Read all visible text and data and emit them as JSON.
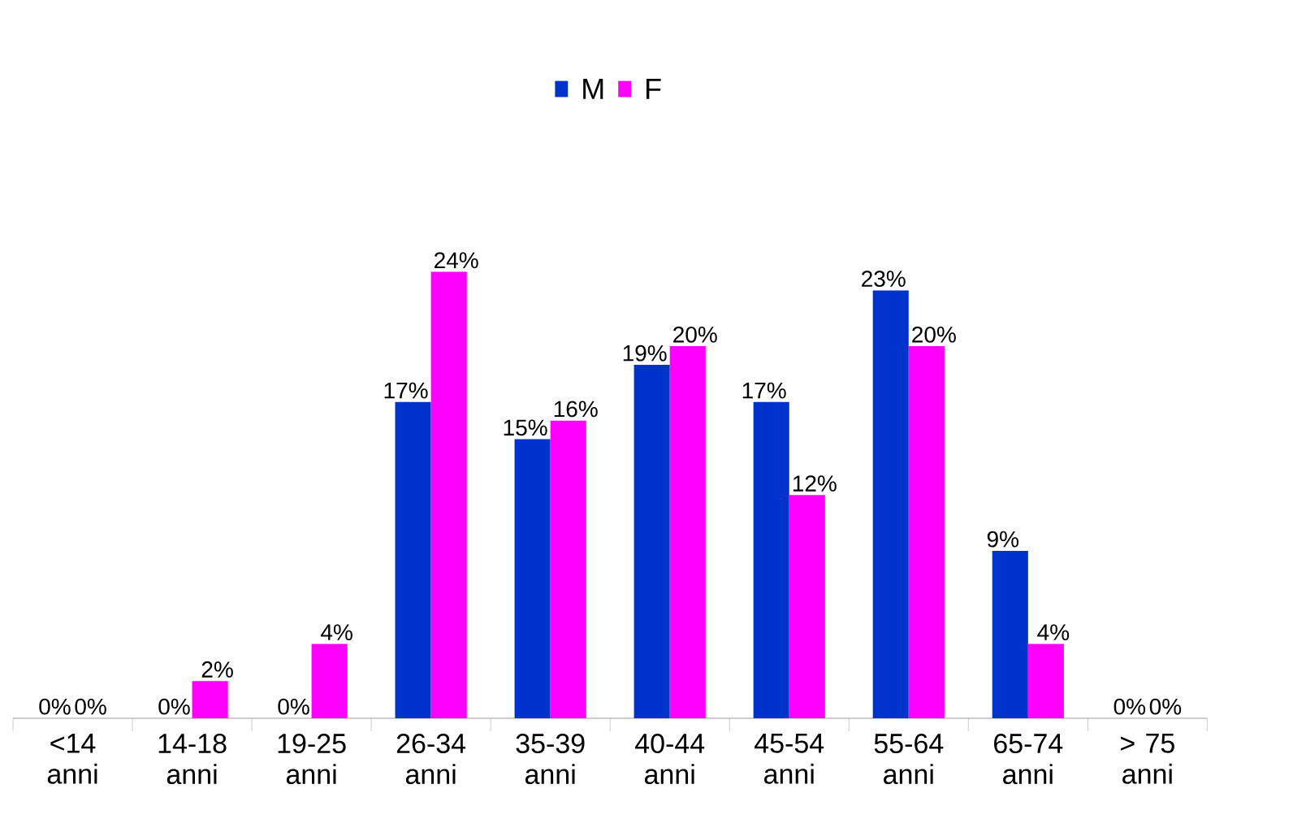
{
  "chart_data": {
    "type": "bar",
    "categories": [
      "<14 anni",
      "14-18 anni",
      "19-25 anni",
      "26-34 anni",
      "35-39 anni",
      "40-44 anni",
      "45-54 anni",
      "55-64 anni",
      "65-74 anni",
      "> 75 anni"
    ],
    "series": [
      {
        "name": "M",
        "color": "#0033cc",
        "values": [
          0,
          0,
          0,
          17,
          15,
          19,
          17,
          23,
          9,
          0
        ],
        "value_labels": [
          "0%",
          "0%",
          "0%",
          "17%",
          "15%",
          "19%",
          "17%",
          "23%",
          "9%",
          "0%"
        ]
      },
      {
        "name": "F",
        "color": "#ff00ff",
        "values": [
          0,
          2,
          4,
          24,
          16,
          20,
          12,
          20,
          4,
          0
        ],
        "value_labels": [
          "0%",
          "2%",
          "4%",
          "24%",
          "16%",
          "20%",
          "12%",
          "20%",
          "4%",
          "0%"
        ]
      }
    ],
    "legend": "top"
  }
}
